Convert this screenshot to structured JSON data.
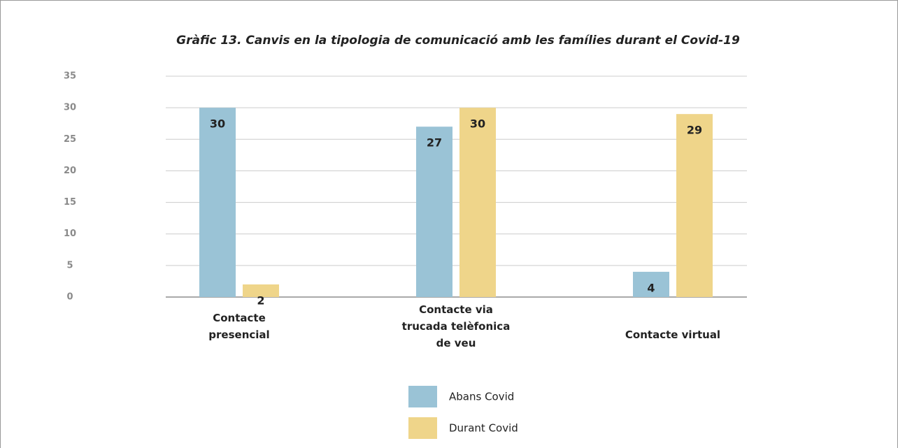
{
  "chart_data": {
    "type": "bar",
    "title": "Gràfic 13. Canvis en la tipologia de comunicació amb les famílies durant el Covid-19",
    "categories": [
      "Contacte\npresencial",
      "Contacte via\ntrucada telèfonica\nde veu",
      "Contacte virtual"
    ],
    "series": [
      {
        "name": "Abans Covid",
        "color": "#9ac3d6",
        "values": [
          30,
          27,
          4
        ]
      },
      {
        "name": "Durant Covid",
        "color": "#efd58a",
        "values": [
          2,
          30,
          29
        ]
      }
    ],
    "ylim": [
      0,
      35
    ],
    "yticks": [
      0,
      5,
      10,
      15,
      20,
      25,
      30,
      35
    ],
    "grid": true
  }
}
